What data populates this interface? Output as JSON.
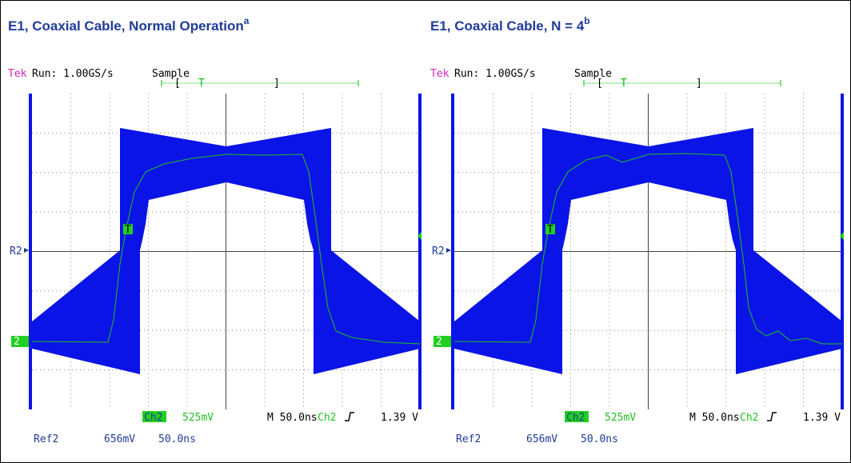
{
  "panels": [
    {
      "title": "E1, Coaxial Cable, Normal Operation",
      "superscript": "a",
      "scope": {
        "brand": "Tek",
        "status": "Run: 1.00GS/s",
        "mode": "Sample",
        "bracket_open": "[",
        "trigger_position": "T",
        "bracket_close": "]",
        "ref_marker": "R2",
        "channel_marker": "2",
        "waveform_marker": "T",
        "channel": "Ch2",
        "volts_per_div": "525mV",
        "timebase": "M 50.0ns",
        "trigger_source": "Ch2",
        "trigger_level": "1.39 V",
        "ref": "Ref2",
        "ref_volts": "656mV",
        "ref_time": "50.0ns"
      }
    },
    {
      "title": "E1, Coaxial Cable, N = 4",
      "superscript": "b",
      "scope": {
        "brand": "Tek",
        "status": "Run: 1.00GS/s",
        "mode": "Sample",
        "bracket_open": "[",
        "trigger_position": "T",
        "bracket_close": "]",
        "ref_marker": "R2",
        "channel_marker": "2",
        "waveform_marker": "T",
        "channel": "Ch2",
        "volts_per_div": "525mV",
        "timebase": "M 50.0ns",
        "trigger_source": "Ch2",
        "trigger_level": "1.39 V",
        "ref": "Ref2",
        "ref_volts": "656mV",
        "ref_time": "50.0ns"
      }
    }
  ]
}
